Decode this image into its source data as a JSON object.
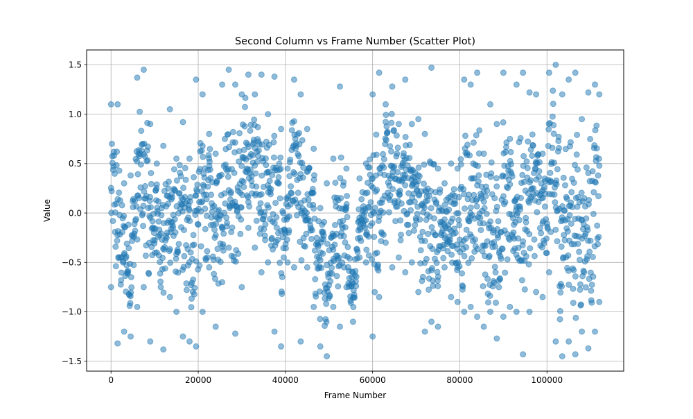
{
  "chart_data": {
    "type": "scatter",
    "title": "Second Column vs Frame Number (Scatter Plot)",
    "xlabel": "Frame Number",
    "ylabel": "Value",
    "xlim": [
      -5600,
      117600
    ],
    "ylim": [
      -1.6,
      1.65
    ],
    "xticks": [
      0,
      20000,
      40000,
      60000,
      80000,
      100000
    ],
    "xtick_labels": [
      "0",
      "20000",
      "40000",
      "60000",
      "80000",
      "100000"
    ],
    "yticks": [
      -1.5,
      -1.0,
      -0.5,
      0.0,
      0.5,
      1.0,
      1.5
    ],
    "ytick_labels": [
      "−1.5",
      "−1.0",
      "−0.5",
      "0.0",
      "0.5",
      "1.0",
      "1.5"
    ],
    "grid": true,
    "marker": "circle",
    "alpha": 0.5,
    "color": "#1f77b4",
    "x_range": [
      0,
      112000
    ],
    "envelope_note_free": true,
    "envelope": [
      {
        "x": 0,
        "min": -0.75,
        "max": 1.1
      },
      {
        "x": 1500,
        "min": -1.32,
        "max": 1.1
      },
      {
        "x": 3000,
        "min": -1.2,
        "max": 0.3
      },
      {
        "x": 4500,
        "min": -1.25,
        "max": 0.38
      },
      {
        "x": 6000,
        "min": -0.95,
        "max": 1.37
      },
      {
        "x": 7500,
        "min": -0.75,
        "max": 1.45
      },
      {
        "x": 9000,
        "min": -1.3,
        "max": 0.9
      },
      {
        "x": 10500,
        "min": -0.4,
        "max": 0.5
      },
      {
        "x": 12000,
        "min": -1.38,
        "max": 0.68
      },
      {
        "x": 13500,
        "min": -0.85,
        "max": 1.05
      },
      {
        "x": 15000,
        "min": -1.0,
        "max": 0.55
      },
      {
        "x": 16500,
        "min": -1.25,
        "max": 0.92
      },
      {
        "x": 18000,
        "min": -1.3,
        "max": 0.55
      },
      {
        "x": 19500,
        "min": -1.35,
        "max": 1.35
      },
      {
        "x": 21000,
        "min": -1.0,
        "max": 1.2
      },
      {
        "x": 22500,
        "min": -0.55,
        "max": 0.8
      },
      {
        "x": 24000,
        "min": -1.15,
        "max": 0.6
      },
      {
        "x": 25500,
        "min": -0.7,
        "max": 1.3
      },
      {
        "x": 27000,
        "min": -0.35,
        "max": 1.45
      },
      {
        "x": 28500,
        "min": -1.22,
        "max": 1.3
      },
      {
        "x": 30000,
        "min": -0.75,
        "max": 1.2
      },
      {
        "x": 31500,
        "min": -0.15,
        "max": 1.4
      },
      {
        "x": 33000,
        "min": -0.35,
        "max": 1.2
      },
      {
        "x": 34500,
        "min": -0.6,
        "max": 1.4
      },
      {
        "x": 36000,
        "min": -0.5,
        "max": 1.0
      },
      {
        "x": 37500,
        "min": -1.2,
        "max": 1.38
      },
      {
        "x": 39000,
        "min": -1.35,
        "max": 0.85
      },
      {
        "x": 40500,
        "min": -0.5,
        "max": 0.45
      },
      {
        "x": 42000,
        "min": -0.55,
        "max": 1.35
      },
      {
        "x": 43500,
        "min": -1.3,
        "max": 1.2
      },
      {
        "x": 45000,
        "min": -0.55,
        "max": 0.85
      },
      {
        "x": 46500,
        "min": -0.95,
        "max": 0.65
      },
      {
        "x": 48000,
        "min": -1.35,
        "max": 0.05
      },
      {
        "x": 49500,
        "min": -1.45,
        "max": 0.3
      },
      {
        "x": 51000,
        "min": -0.95,
        "max": 0.55
      },
      {
        "x": 52500,
        "min": -1.15,
        "max": 1.28
      },
      {
        "x": 54000,
        "min": -0.75,
        "max": 0.45
      },
      {
        "x": 55500,
        "min": -1.1,
        "max": -0.6
      },
      {
        "x": 57000,
        "min": -0.45,
        "max": 0.35
      },
      {
        "x": 58500,
        "min": -0.5,
        "max": 0.5
      },
      {
        "x": 60000,
        "min": -1.25,
        "max": 1.2
      },
      {
        "x": 61500,
        "min": -0.85,
        "max": 1.42
      },
      {
        "x": 63000,
        "min": -0.3,
        "max": 1.1
      },
      {
        "x": 64500,
        "min": -0.55,
        "max": 1.28
      },
      {
        "x": 66000,
        "min": -0.45,
        "max": 0.9
      },
      {
        "x": 67500,
        "min": -0.6,
        "max": 1.35
      },
      {
        "x": 69000,
        "min": -0.5,
        "max": 0.9
      },
      {
        "x": 70500,
        "min": -0.8,
        "max": 0.95
      },
      {
        "x": 72000,
        "min": -1.2,
        "max": 0.8
      },
      {
        "x": 73500,
        "min": -1.1,
        "max": 1.47
      },
      {
        "x": 75000,
        "min": -1.15,
        "max": 0.45
      },
      {
        "x": 76500,
        "min": -0.55,
        "max": 0.3
      },
      {
        "x": 78000,
        "min": -0.85,
        "max": 0.5
      },
      {
        "x": 79500,
        "min": -0.9,
        "max": 0.45
      },
      {
        "x": 81000,
        "min": -1.0,
        "max": 1.35
      },
      {
        "x": 82500,
        "min": -0.95,
        "max": 1.3
      },
      {
        "x": 84000,
        "min": -1.05,
        "max": 1.42
      },
      {
        "x": 85500,
        "min": -1.15,
        "max": 0.6
      },
      {
        "x": 87000,
        "min": -1.0,
        "max": 1.1
      },
      {
        "x": 88500,
        "min": -1.27,
        "max": 0.9
      },
      {
        "x": 90000,
        "min": -1.05,
        "max": 1.42
      },
      {
        "x": 91500,
        "min": -0.95,
        "max": 0.75
      },
      {
        "x": 93000,
        "min": -1.0,
        "max": 1.3
      },
      {
        "x": 94500,
        "min": -1.43,
        "max": 1.42
      },
      {
        "x": 96000,
        "min": -1.0,
        "max": 1.22
      },
      {
        "x": 97500,
        "min": -0.8,
        "max": 1.2
      },
      {
        "x": 99000,
        "min": -0.85,
        "max": 0.6
      },
      {
        "x": 100500,
        "min": -0.6,
        "max": 1.42
      },
      {
        "x": 102000,
        "min": -1.3,
        "max": 1.5
      },
      {
        "x": 103500,
        "min": -1.45,
        "max": 1.2
      },
      {
        "x": 105000,
        "min": -1.3,
        "max": 1.35
      },
      {
        "x": 106500,
        "min": -1.43,
        "max": 1.42
      },
      {
        "x": 108000,
        "min": -1.2,
        "max": 0.95
      },
      {
        "x": 109500,
        "min": -1.37,
        "max": 1.22
      },
      {
        "x": 111000,
        "min": -1.2,
        "max": 1.3
      },
      {
        "x": 112000,
        "min": -0.9,
        "max": 1.2
      }
    ]
  }
}
